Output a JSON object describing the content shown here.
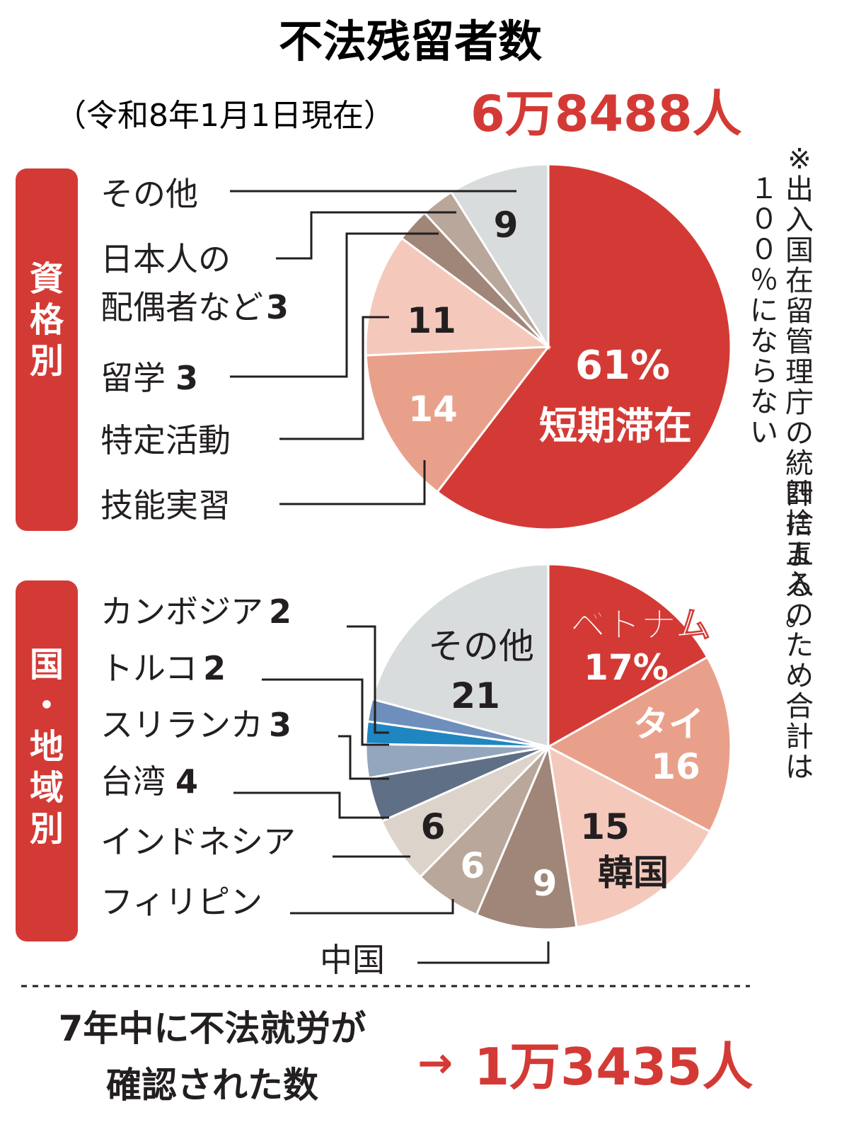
{
  "header": {
    "title": "不法残留者数",
    "date_note": "（令和8年1月1日現在）",
    "total": "6万8488人"
  },
  "side_note": "※出入国在留管理庁の統計による。四捨五入のため合計は１００％にならない",
  "bottom": {
    "line1": "7年中に不法就労が",
    "line2": "確認された数",
    "arrow": "→",
    "value": "1万3435人"
  },
  "chart_data": [
    {
      "type": "pie",
      "group_label": "資格別",
      "unit": "%",
      "slices": [
        {
          "label": "短期滞在",
          "value": 61,
          "display": "61%",
          "color": "#d43a35"
        },
        {
          "label": "技能実習",
          "value": 14,
          "display": "14",
          "color": "#e9a08a"
        },
        {
          "label": "特定活動",
          "value": 11,
          "display": "11",
          "color": "#f4c9bb"
        },
        {
          "label": "留学",
          "value": 3,
          "display": "3",
          "color": "#a08678"
        },
        {
          "label": "日本人の配偶者など",
          "value": 3,
          "display": "3",
          "color": "#b9a79b"
        },
        {
          "label": "その他",
          "value": 9,
          "display": "9",
          "color": "#d9dcdd"
        }
      ]
    },
    {
      "type": "pie",
      "group_label": "国・地域別",
      "unit": "%",
      "slices": [
        {
          "label": "ベトナム",
          "value": 17,
          "display": "17%",
          "color": "#d43a35"
        },
        {
          "label": "タイ",
          "value": 16,
          "display": "16",
          "color": "#e9a08a"
        },
        {
          "label": "韓国",
          "value": 15,
          "display": "15",
          "color": "#f4c9bb"
        },
        {
          "label": "中国",
          "value": 9,
          "display": "9",
          "color": "#a08678"
        },
        {
          "label": "フィリピン",
          "value": 6,
          "display": "6",
          "color": "#b9a79b"
        },
        {
          "label": "インドネシア",
          "value": 6,
          "display": "6",
          "color": "#dcd3cb"
        },
        {
          "label": "台湾",
          "value": 4,
          "display": "4",
          "color": "#5f6f86"
        },
        {
          "label": "スリランカ",
          "value": 3,
          "display": "3",
          "color": "#93a6bd"
        },
        {
          "label": "トルコ",
          "value": 2,
          "display": "2",
          "color": "#1f86c1"
        },
        {
          "label": "カンボジア",
          "value": 2,
          "display": "2",
          "color": "#6e8fbc"
        },
        {
          "label": "その他",
          "value": 21,
          "display": "21",
          "color": "#d9dcdd"
        }
      ]
    }
  ]
}
